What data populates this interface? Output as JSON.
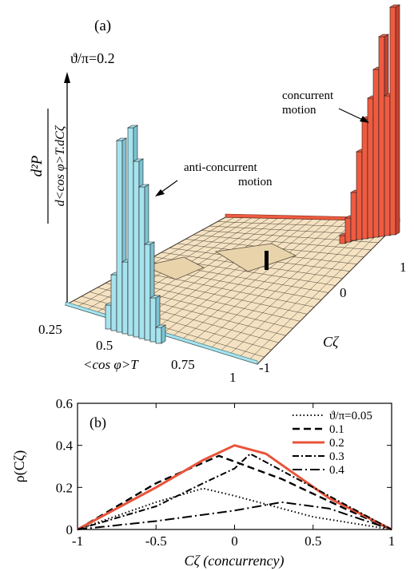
{
  "panel_a": {
    "label": "(a)",
    "theta_label": "ϑ/π=0.2",
    "z_label": {
      "top": "d²P",
      "bottom": "d<cos φ>T.dCζ"
    },
    "x_label": "<cos φ>T",
    "x_ticks": [
      "0.25",
      "0.5",
      "0.75",
      "1"
    ],
    "y_label": "Cζ",
    "y_ticks": [
      "-1",
      "0",
      "1"
    ],
    "annotation_anti": [
      "anti-concurrent",
      "motion"
    ],
    "annotation_concurrent": [
      "concurrent",
      "motion"
    ],
    "colors": {
      "surface": "#f4e2c2",
      "anti": "#a6e3ee",
      "concurrent": "#ef5b40"
    }
  },
  "chart_data": [
    {
      "type": "line",
      "title": "(b)",
      "xlabel": "Cζ  (concurrency)",
      "ylabel": "ρ(Cζ)",
      "xlim": [
        -1,
        1
      ],
      "ylim": [
        0,
        0.6
      ],
      "x_ticks": [
        "-1",
        "-0.5",
        "0",
        "0.5",
        "1"
      ],
      "y_ticks": [
        "0",
        "0.2",
        "0.4",
        "0.6"
      ],
      "grid": false,
      "legend_position": "top-right",
      "series": [
        {
          "name": "ϑ/π=0.05",
          "style": "dotted",
          "color": "#000000",
          "points": [
            [
              -1,
              0
            ],
            [
              -0.5,
              0.13
            ],
            [
              -0.2,
              0.195
            ],
            [
              0,
              0.16
            ],
            [
              0.5,
              0.06
            ],
            [
              1,
              0
            ]
          ]
        },
        {
          "name": "0.1",
          "style": "dashed",
          "color": "#000000",
          "points": [
            [
              -1,
              0
            ],
            [
              -0.5,
              0.22
            ],
            [
              -0.1,
              0.35
            ],
            [
              0.3,
              0.24
            ],
            [
              0.7,
              0.1
            ],
            [
              1,
              0
            ]
          ]
        },
        {
          "name": "0.2",
          "style": "solid",
          "color": "#e8533a",
          "points": [
            [
              -1,
              0
            ],
            [
              -0.5,
              0.2
            ],
            [
              -0.2,
              0.33
            ],
            [
              0,
              0.4
            ],
            [
              0.2,
              0.36
            ],
            [
              0.6,
              0.15
            ],
            [
              1,
              0
            ]
          ]
        },
        {
          "name": "0.3",
          "style": "dashdot-short",
          "color": "#000000",
          "points": [
            [
              -1,
              0
            ],
            [
              -0.5,
              0.11
            ],
            [
              -0.2,
              0.22
            ],
            [
              0,
              0.29
            ],
            [
              0.1,
              0.36
            ],
            [
              0.5,
              0.2
            ],
            [
              1,
              0
            ]
          ]
        },
        {
          "name": "0.4",
          "style": "dashdot-long",
          "color": "#000000",
          "points": [
            [
              -1,
              0
            ],
            [
              -0.5,
              0.04
            ],
            [
              0,
              0.09
            ],
            [
              0.3,
              0.13
            ],
            [
              0.6,
              0.1
            ],
            [
              1,
              0
            ]
          ]
        }
      ]
    }
  ]
}
